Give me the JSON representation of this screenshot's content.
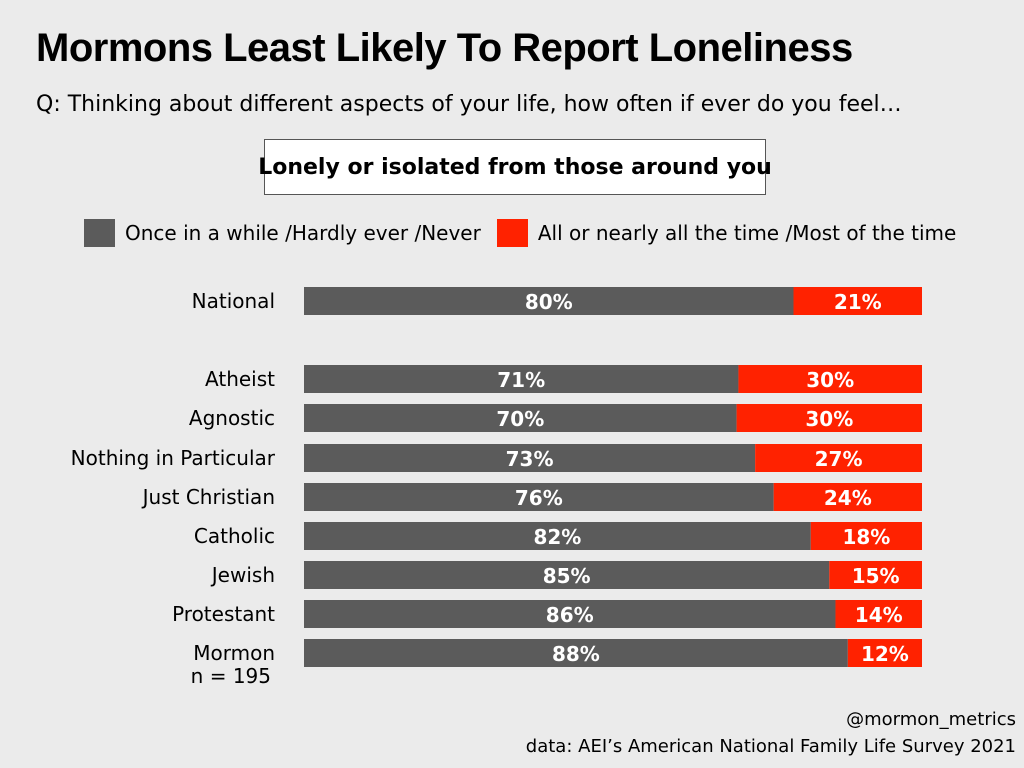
{
  "header": {
    "title": "Mormons Least Likely To Report Loneliness",
    "subtitle": "Q: Thinking about different aspects of your life, how often if ever do you feel…",
    "question": "Lonely or isolated from those around you"
  },
  "colors": {
    "gray": "#5b5b5b",
    "red": "#ff2200",
    "background": "#ebebeb"
  },
  "chart_data": {
    "type": "bar",
    "orientation": "horizontal",
    "stacked": true,
    "title": "Mormons Least Likely To Report Loneliness",
    "categories": [
      "National",
      "Atheist",
      "Agnostic",
      "Nothing in Particular",
      "Just Christian",
      "Catholic",
      "Jewish",
      "Protestant",
      "Mormon"
    ],
    "category_notes": {
      "Mormon": "n = 195"
    },
    "series": [
      {
        "name": "Once in a while /Hardly ever /Never",
        "color": "#5b5b5b",
        "values": [
          80,
          71,
          70,
          73,
          76,
          82,
          85,
          86,
          88
        ],
        "labels": [
          "80%",
          "71%",
          "70%",
          "73%",
          "76%",
          "82%",
          "85%",
          "86%",
          "88%"
        ]
      },
      {
        "name": "All or nearly all the time /Most of the time",
        "color": "#ff2200",
        "values": [
          21,
          30,
          30,
          27,
          24,
          18,
          15,
          14,
          12
        ],
        "labels": [
          "21%",
          "30%",
          "30%",
          "27%",
          "24%",
          "18%",
          "15%",
          "14%",
          "12%"
        ]
      }
    ],
    "xlim": [
      0,
      100
    ],
    "legend": "top",
    "grid": false
  },
  "footer": {
    "handle": "@mormon_metrics",
    "source": "data: AEI’s American National Family Life Survey 2021"
  }
}
